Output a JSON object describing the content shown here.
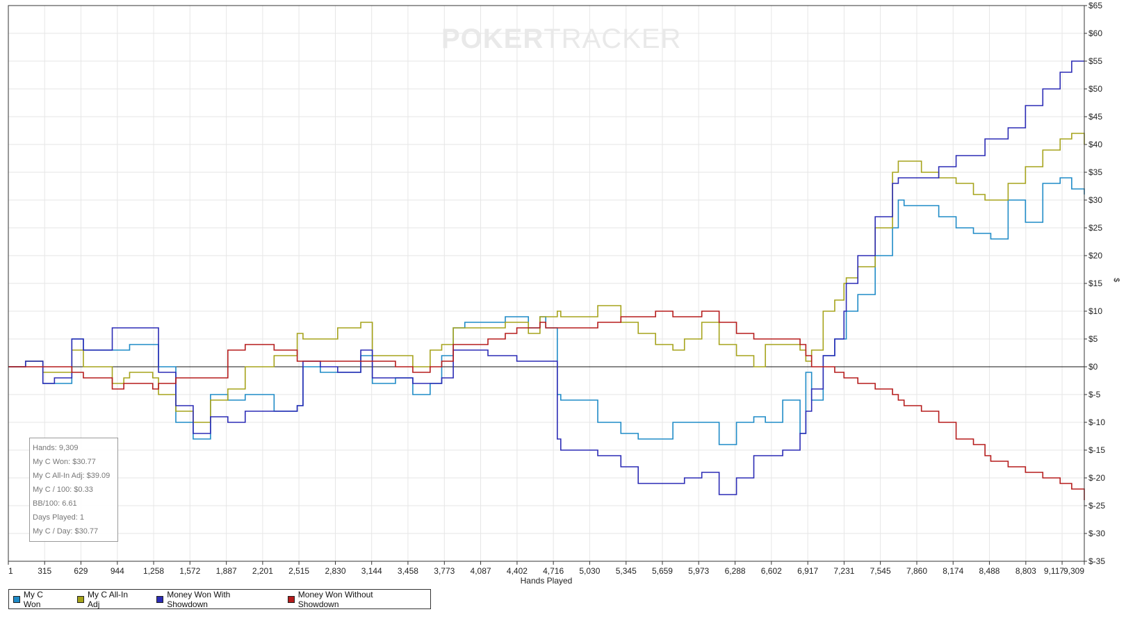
{
  "watermark": {
    "bold": "POKER",
    "thin": "TRACKER"
  },
  "stats": {
    "hands": "Hands: 9,309",
    "won": "My C Won: $30.77",
    "allin": "My C All-In Adj: $39.09",
    "per100": "My C / 100: $0.33",
    "bb100": "BB/100: 6.61",
    "days": "Days Played: 1",
    "perday": "My C / Day: $30.77"
  },
  "chart_data": {
    "type": "line",
    "xlabel": "Hands Played",
    "ylabel": "$",
    "xlim": [
      1,
      9309
    ],
    "ylim": [
      -35,
      65
    ],
    "x_ticks": [
      "1",
      "315",
      "629",
      "944",
      "1,258",
      "1,572",
      "1,887",
      "2,201",
      "2,515",
      "2,830",
      "3,144",
      "3,458",
      "3,773",
      "4,087",
      "4,402",
      "4,716",
      "5,030",
      "5,345",
      "5,659",
      "5,973",
      "6,288",
      "6,602",
      "6,917",
      "7,231",
      "7,545",
      "7,860",
      "8,174",
      "8,488",
      "8,803",
      "9,117",
      "9,309"
    ],
    "y_ticks": [
      "$65",
      "$60",
      "$55",
      "$50",
      "$45",
      "$40",
      "$35",
      "$30",
      "$25",
      "$20",
      "$15",
      "$10",
      "$5",
      "$0",
      "$-5",
      "$-10",
      "$-15",
      "$-20",
      "$-25",
      "$-30",
      "$-35"
    ],
    "grid": true,
    "legend_position": "bottom-left",
    "series": [
      {
        "name": "My C Won",
        "color": "#1f8bc7",
        "x": [
          1,
          150,
          300,
          400,
          550,
          650,
          900,
          1000,
          1050,
          1250,
          1300,
          1450,
          1600,
          1750,
          1900,
          2050,
          2300,
          2500,
          2550,
          2700,
          2850,
          3050,
          3150,
          3350,
          3500,
          3650,
          3750,
          3850,
          3950,
          4150,
          4300,
          4400,
          4500,
          4600,
          4650,
          4750,
          4780,
          4900,
          5100,
          5300,
          5450,
          5600,
          5750,
          5850,
          6000,
          6150,
          6300,
          6450,
          6550,
          6700,
          6850,
          6900,
          6950,
          7050,
          7150,
          7230,
          7250,
          7350,
          7500,
          7650,
          7700,
          7750,
          7900,
          8050,
          8200,
          8350,
          8450,
          8500,
          8650,
          8800,
          8950,
          9100,
          9200,
          9309
        ],
        "y": [
          0,
          1,
          -3,
          -3,
          5,
          3,
          3,
          3,
          4,
          4,
          0,
          -10,
          -13,
          -5,
          -6,
          -5,
          -8,
          -7,
          0,
          -1,
          -1,
          2,
          -3,
          -2,
          -5,
          -3,
          2,
          7,
          8,
          8,
          9,
          9,
          7,
          9,
          7,
          -5,
          -6,
          -6,
          -10,
          -12,
          -13,
          -13,
          -10,
          -10,
          -10,
          -14,
          -10,
          -9,
          -10,
          -6,
          -12,
          -1,
          -6,
          2,
          5,
          5,
          10,
          13,
          20,
          25,
          30,
          29,
          29,
          27,
          25,
          24,
          24,
          23,
          30,
          26,
          33,
          34,
          32,
          31
        ]
      },
      {
        "name": "My C All-In Adj",
        "color": "#a6a31b",
        "x": [
          1,
          150,
          300,
          400,
          550,
          650,
          900,
          1000,
          1050,
          1250,
          1300,
          1450,
          1600,
          1750,
          1900,
          2050,
          2300,
          2500,
          2550,
          2700,
          2850,
          3050,
          3150,
          3350,
          3500,
          3650,
          3750,
          3850,
          3950,
          4150,
          4300,
          4400,
          4500,
          4600,
          4650,
          4750,
          4780,
          4900,
          5100,
          5300,
          5450,
          5600,
          5750,
          5850,
          6000,
          6150,
          6300,
          6450,
          6550,
          6700,
          6850,
          6900,
          6950,
          7050,
          7150,
          7230,
          7250,
          7350,
          7500,
          7650,
          7700,
          7750,
          7900,
          8050,
          8200,
          8350,
          8450,
          8500,
          8650,
          8800,
          8950,
          9100,
          9200,
          9309
        ],
        "y": [
          0,
          1,
          -1,
          -1,
          3,
          0,
          -3,
          -2,
          -1,
          -2,
          -5,
          -8,
          -10,
          -6,
          -4,
          0,
          2,
          6,
          5,
          5,
          7,
          8,
          2,
          2,
          0,
          3,
          4,
          7,
          7,
          7,
          8,
          8,
          6,
          9,
          9,
          10,
          9,
          9,
          11,
          8,
          6,
          4,
          3,
          5,
          8,
          4,
          2,
          0,
          4,
          4,
          3,
          1,
          3,
          10,
          12,
          15,
          16,
          18,
          25,
          35,
          37,
          37,
          35,
          34,
          33,
          31,
          30,
          30,
          33,
          36,
          39,
          41,
          42,
          40
        ]
      },
      {
        "name": "Money Won With Showdown",
        "color": "#2b2bb5",
        "x": [
          1,
          150,
          300,
          400,
          550,
          650,
          900,
          1000,
          1050,
          1250,
          1300,
          1450,
          1600,
          1750,
          1900,
          2050,
          2300,
          2500,
          2550,
          2700,
          2850,
          3050,
          3150,
          3350,
          3500,
          3650,
          3750,
          3850,
          3950,
          4150,
          4300,
          4400,
          4500,
          4600,
          4650,
          4750,
          4780,
          4900,
          5100,
          5300,
          5450,
          5600,
          5750,
          5850,
          6000,
          6150,
          6300,
          6450,
          6550,
          6700,
          6850,
          6900,
          6950,
          7050,
          7150,
          7230,
          7250,
          7350,
          7500,
          7650,
          7700,
          7750,
          7900,
          8050,
          8200,
          8350,
          8450,
          8500,
          8650,
          8800,
          8950,
          9100,
          9200,
          9309
        ],
        "y": [
          0,
          1,
          -3,
          -2,
          5,
          3,
          7,
          7,
          7,
          7,
          -1,
          -7,
          -12,
          -9,
          -10,
          -8,
          -8,
          -7,
          1,
          0,
          -1,
          3,
          -2,
          -2,
          -3,
          -3,
          -2,
          3,
          3,
          2,
          2,
          1,
          1,
          1,
          1,
          -13,
          -15,
          -15,
          -16,
          -18,
          -21,
          -21,
          -21,
          -20,
          -19,
          -23,
          -20,
          -16,
          -16,
          -15,
          -12,
          -8,
          -4,
          2,
          5,
          10,
          15,
          20,
          27,
          33,
          34,
          34,
          34,
          36,
          38,
          38,
          41,
          41,
          43,
          47,
          50,
          53,
          55,
          55
        ]
      },
      {
        "name": "Money Won Without Showdown",
        "color": "#b51c1c",
        "x": [
          1,
          150,
          300,
          400,
          550,
          650,
          900,
          1000,
          1050,
          1250,
          1300,
          1450,
          1600,
          1750,
          1900,
          2050,
          2300,
          2500,
          2550,
          2700,
          2850,
          3050,
          3150,
          3350,
          3500,
          3650,
          3750,
          3850,
          3950,
          4150,
          4300,
          4400,
          4500,
          4600,
          4650,
          4750,
          4780,
          4900,
          5100,
          5300,
          5450,
          5600,
          5750,
          5850,
          6000,
          6150,
          6300,
          6450,
          6550,
          6700,
          6850,
          6900,
          6950,
          7050,
          7150,
          7230,
          7250,
          7350,
          7500,
          7650,
          7700,
          7750,
          7900,
          8050,
          8200,
          8350,
          8450,
          8500,
          8650,
          8800,
          8950,
          9100,
          9200,
          9309
        ],
        "y": [
          0,
          0,
          0,
          0,
          -1,
          -2,
          -4,
          -3,
          -3,
          -4,
          -3,
          -2,
          -2,
          -2,
          3,
          4,
          3,
          1,
          1,
          1,
          1,
          1,
          1,
          0,
          -1,
          0,
          1,
          4,
          4,
          5,
          6,
          7,
          7,
          8,
          7,
          7,
          7,
          7,
          8,
          9,
          9,
          10,
          9,
          9,
          10,
          8,
          6,
          5,
          5,
          5,
          4,
          2,
          0,
          0,
          -1,
          -2,
          -2,
          -3,
          -4,
          -5,
          -6,
          -7,
          -8,
          -10,
          -13,
          -14,
          -16,
          -17,
          -18,
          -19,
          -20,
          -21,
          -22,
          -24
        ]
      }
    ]
  }
}
